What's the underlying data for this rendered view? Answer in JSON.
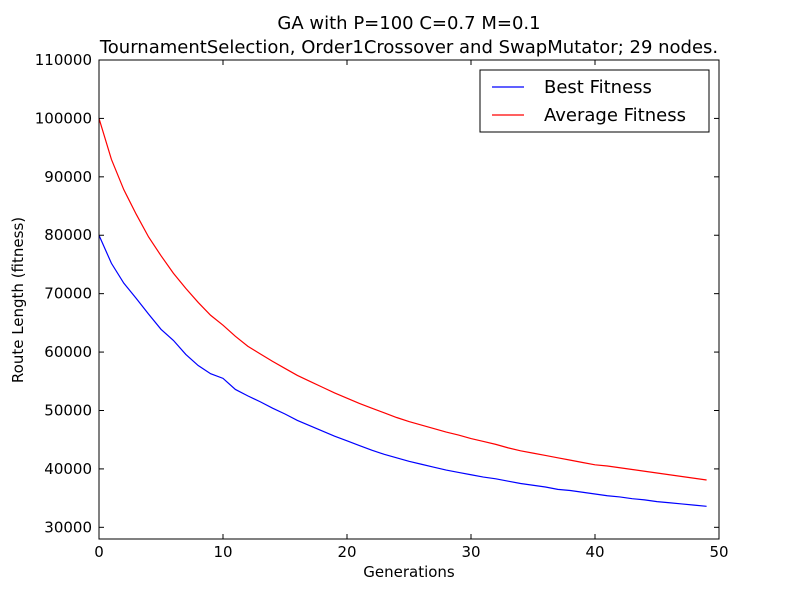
{
  "chart_data": {
    "type": "line",
    "title": "GA with P=100 C=0.7 M=0.1",
    "subtitle": "TournamentSelection, Order1Crossover and SwapMutator; 29 nodes.",
    "xlabel": "Generations",
    "ylabel": "Route Length (fitness)",
    "xlim": [
      0,
      50
    ],
    "ylim": [
      28000,
      110000
    ],
    "x_ticks": [
      "0",
      "10",
      "20",
      "30",
      "40",
      "50"
    ],
    "y_ticks": [
      "30000",
      "40000",
      "50000",
      "60000",
      "70000",
      "80000",
      "90000",
      "100000",
      "110000"
    ],
    "grid": false,
    "legend_position": "top-right",
    "x": [
      0,
      1,
      2,
      3,
      4,
      5,
      6,
      7,
      8,
      9,
      10,
      11,
      12,
      13,
      14,
      15,
      16,
      17,
      18,
      19,
      20,
      21,
      22,
      23,
      24,
      25,
      26,
      27,
      28,
      29,
      30,
      31,
      32,
      33,
      34,
      35,
      36,
      37,
      38,
      39,
      40,
      41,
      42,
      43,
      44,
      45,
      46,
      47,
      48,
      49
    ],
    "series": [
      {
        "name": "Best Fitness",
        "color": "#0000ff",
        "values": [
          80000,
          75200,
          71800,
          69200,
          66500,
          63900,
          62000,
          59600,
          57700,
          56300,
          55500,
          53600,
          52500,
          51500,
          50400,
          49400,
          48300,
          47400,
          46500,
          45600,
          44800,
          44000,
          43200,
          42500,
          41900,
          41300,
          40800,
          40300,
          39800,
          39400,
          39000,
          38600,
          38300,
          37900,
          37500,
          37200,
          36900,
          36500,
          36300,
          36000,
          35700,
          35400,
          35200,
          34900,
          34700,
          34400,
          34200,
          34000,
          33800,
          33600
        ]
      },
      {
        "name": "Average Fitness",
        "color": "#ff0000",
        "values": [
          100000,
          93000,
          87800,
          83600,
          79700,
          76500,
          73500,
          70900,
          68500,
          66300,
          64600,
          62700,
          61000,
          59700,
          58400,
          57200,
          56000,
          55000,
          54000,
          53000,
          52100,
          51200,
          50400,
          49600,
          48800,
          48100,
          47500,
          46900,
          46300,
          45800,
          45200,
          44700,
          44200,
          43600,
          43100,
          42700,
          42300,
          41900,
          41500,
          41100,
          40700,
          40500,
          40200,
          39900,
          39600,
          39300,
          39000,
          38700,
          38400,
          38100
        ]
      }
    ]
  }
}
